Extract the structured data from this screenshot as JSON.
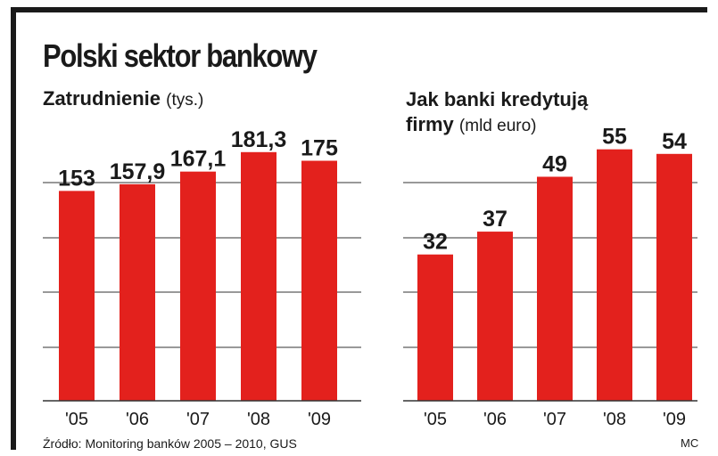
{
  "title": "Polski sektor bankowy",
  "footer": {
    "source": "Źródło: Monitoring banków 2005 – 2010, GUS",
    "credit": "MC"
  },
  "colors": {
    "bar": "#e3211d",
    "frame": "#1a1a1a",
    "grid": "#333333"
  },
  "chart_data": [
    {
      "type": "bar",
      "title": "Zatrudnienie",
      "unit": "(tys.)",
      "categories": [
        "'05",
        "'06",
        "'07",
        "'08",
        "'09"
      ],
      "values": [
        153,
        157.9,
        167.1,
        181.3,
        175
      ],
      "value_labels": [
        "153",
        "157,9",
        "167,1",
        "181,3",
        "175"
      ],
      "ylim": [
        0,
        200
      ],
      "grid": true
    },
    {
      "type": "bar",
      "title_line1": "Jak banki kredytują",
      "title_line2": "firmy",
      "unit": "(mld euro)",
      "categories": [
        "'05",
        "'06",
        "'07",
        "'08",
        "'09"
      ],
      "values": [
        32,
        37,
        49,
        55,
        54
      ],
      "value_labels": [
        "32",
        "37",
        "49",
        "55",
        "54"
      ],
      "ylim": [
        0,
        60
      ],
      "grid": true
    }
  ]
}
